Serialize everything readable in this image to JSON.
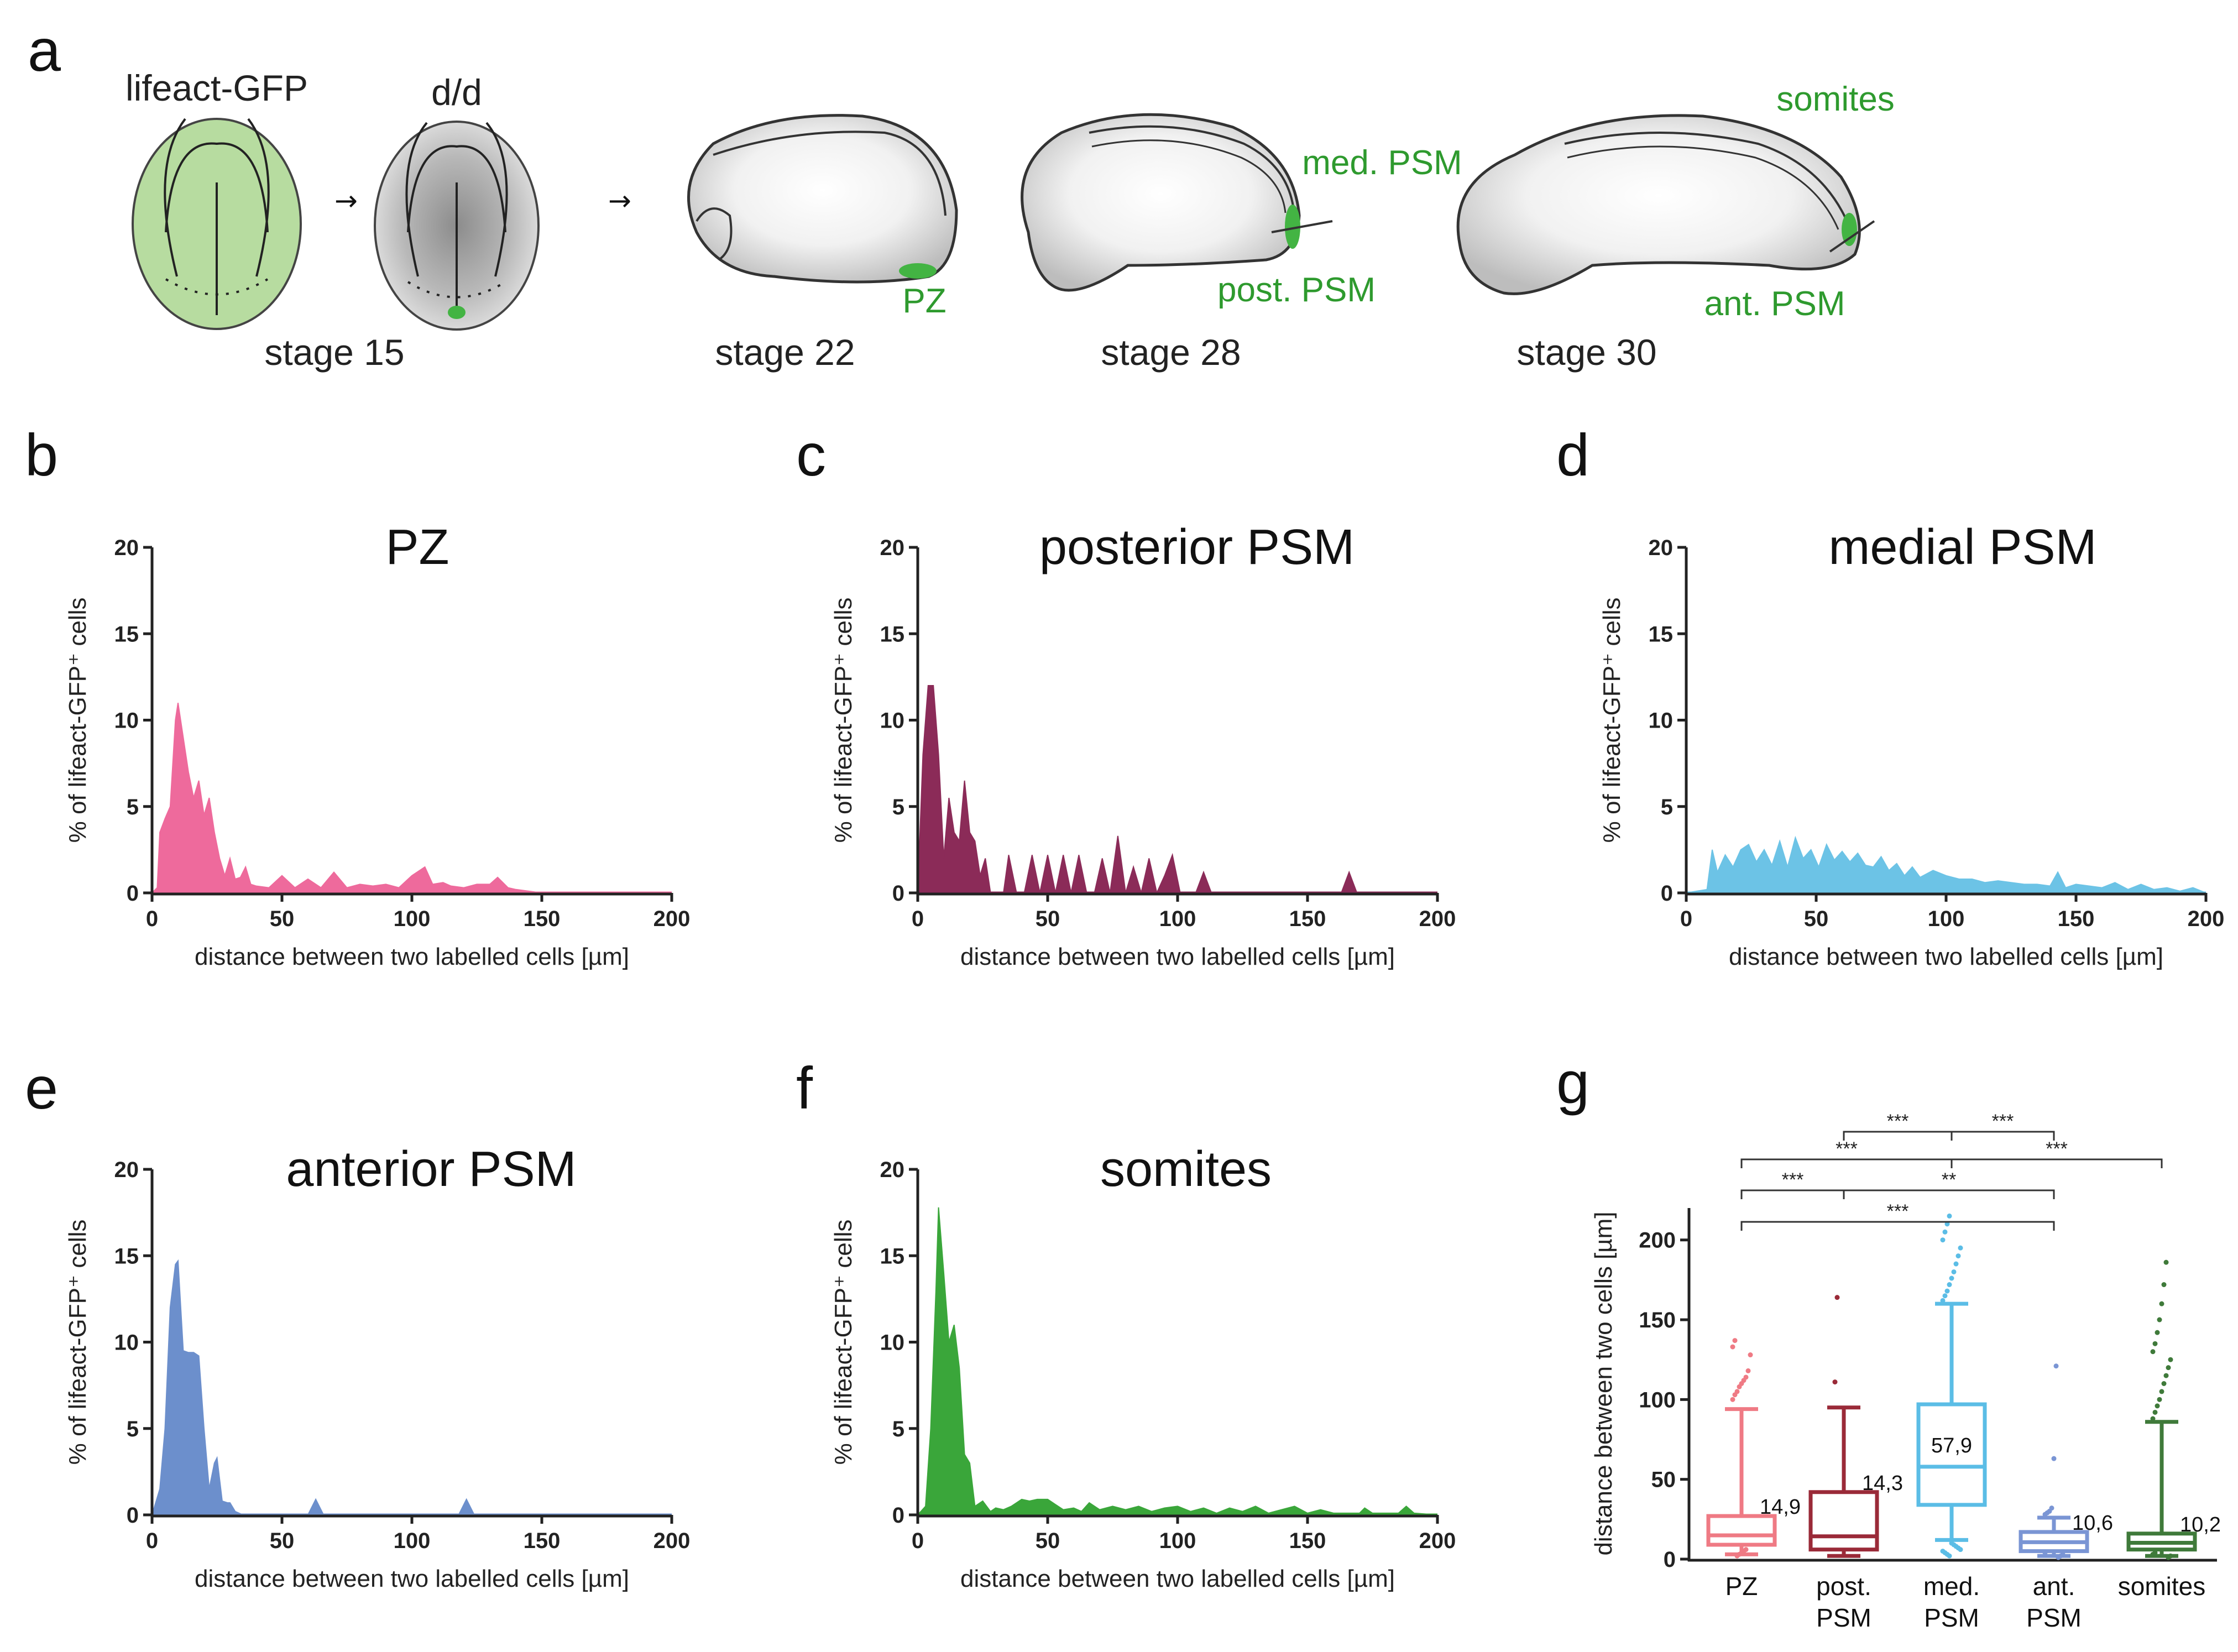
{
  "panels": {
    "a": "a",
    "b": "b",
    "c": "c",
    "d": "d",
    "e": "e",
    "f": "f",
    "g": "g"
  },
  "schematic": {
    "embryo1_label": "lifeact-GFP",
    "embryo2_label": "d/d",
    "stage15": "stage 15",
    "stage22": "stage 22",
    "stage28": "stage 28",
    "stage30": "stage 30",
    "pz": "PZ",
    "med_psm": "med. PSM",
    "post_psm": "post. PSM",
    "somites": "somites",
    "ant_psm": "ant. PSM"
  },
  "colors": {
    "pz": "#ee6a9c",
    "posterior": "#8b2b58",
    "medial": "#6cc3e6",
    "anterior": "#6c8fcc",
    "somites": "#3aa63a",
    "box_pz": "#ef7a84",
    "box_post": "#9a2a38",
    "box_med": "#5bbde6",
    "box_ant": "#7a95d4",
    "box_som": "#3f7a3a",
    "green": "#2e9a2e"
  },
  "chart_data": [
    {
      "type": "area",
      "panel": "b",
      "title": "PZ",
      "color_key": "pz",
      "xlabel": "distance between two labelled cells [µm]",
      "ylabel": "% of lifeact-GFP⁺ cells",
      "xlim": [
        0,
        200
      ],
      "ylim": [
        0,
        20
      ],
      "xticks": [
        0,
        50,
        100,
        150,
        200
      ],
      "yticks": [
        0,
        5,
        10,
        15,
        20
      ],
      "x": [
        0,
        2,
        3,
        5,
        7,
        9,
        10,
        12,
        14,
        16,
        18,
        20,
        22,
        24,
        26,
        28,
        30,
        32,
        34,
        36,
        38,
        40,
        45,
        50,
        55,
        60,
        65,
        70,
        75,
        80,
        85,
        90,
        95,
        100,
        105,
        108,
        112,
        115,
        120,
        125,
        130,
        133,
        137,
        140,
        145,
        150,
        200
      ],
      "y": [
        0,
        0.3,
        3.5,
        4.3,
        5.0,
        10.0,
        11.0,
        9.0,
        7.0,
        5.5,
        6.5,
        4.5,
        5.5,
        3.5,
        2.0,
        1.0,
        2.0,
        0.8,
        0.9,
        1.5,
        0.5,
        0.4,
        0.3,
        1.0,
        0.3,
        0.8,
        0.3,
        1.2,
        0.3,
        0.5,
        0.4,
        0.5,
        0.3,
        1.0,
        1.5,
        0.5,
        0.6,
        0.4,
        0.3,
        0.5,
        0.5,
        0.9,
        0.3,
        0.2,
        0.1,
        0,
        0
      ]
    },
    {
      "type": "area",
      "panel": "c",
      "title": "posterior PSM",
      "color_key": "posterior",
      "xlabel": "distance between two labelled cells [µm]",
      "ylabel": "% of lifeact-GFP⁺ cells",
      "xlim": [
        0,
        200
      ],
      "ylim": [
        0,
        20
      ],
      "xticks": [
        0,
        50,
        100,
        150,
        200
      ],
      "yticks": [
        0,
        5,
        10,
        15,
        20
      ],
      "x": [
        0,
        2,
        4,
        6,
        8,
        10,
        12,
        14,
        16,
        18,
        20,
        22,
        24,
        26,
        28,
        30,
        33,
        35,
        38,
        41,
        44,
        47,
        50,
        53,
        56,
        59,
        62,
        65,
        68,
        71,
        74,
        77,
        80,
        83,
        86,
        89,
        92,
        95,
        98,
        101,
        104,
        107,
        110,
        113,
        116,
        160,
        163,
        166,
        169,
        200
      ],
      "y": [
        0,
        8,
        12,
        12,
        8,
        2,
        5.5,
        3.5,
        3.0,
        6.5,
        3.5,
        3.0,
        1.0,
        2.0,
        0,
        0,
        0,
        2.2,
        0,
        0,
        2.2,
        0,
        2.2,
        0,
        2.2,
        0,
        2.2,
        0,
        0,
        2.0,
        0,
        3.3,
        0,
        1.5,
        0,
        2.0,
        0,
        1.0,
        2.2,
        0,
        0,
        0,
        1.2,
        0,
        0,
        0,
        0,
        1.2,
        0,
        0
      ]
    },
    {
      "type": "area",
      "panel": "d",
      "title": "medial PSM",
      "color_key": "medial",
      "xlabel": "distance between two labelled cells [µm]",
      "ylabel": "% of lifeact-GFP⁺ cells",
      "xlim": [
        0,
        200
      ],
      "ylim": [
        0,
        20
      ],
      "xticks": [
        0,
        50,
        100,
        150,
        200
      ],
      "yticks": [
        0,
        5,
        10,
        15,
        20
      ],
      "x": [
        0,
        4,
        8,
        10,
        12,
        15,
        18,
        21,
        24,
        27,
        30,
        33,
        36,
        39,
        42,
        45,
        48,
        51,
        54,
        57,
        60,
        63,
        66,
        69,
        72,
        75,
        78,
        81,
        84,
        87,
        90,
        95,
        100,
        105,
        110,
        115,
        120,
        125,
        130,
        135,
        140,
        143,
        146,
        150,
        155,
        160,
        165,
        170,
        175,
        180,
        185,
        190,
        195,
        200
      ],
      "y": [
        0,
        0.1,
        0.2,
        2.5,
        1.2,
        2.2,
        1.5,
        2.5,
        2.8,
        1.8,
        2.5,
        1.6,
        3.0,
        1.5,
        3.2,
        2.0,
        2.5,
        1.5,
        2.8,
        1.9,
        2.4,
        1.8,
        2.3,
        1.6,
        1.5,
        2.1,
        1.3,
        1.7,
        1.0,
        1.5,
        0.9,
        1.3,
        1.0,
        0.8,
        0.8,
        0.6,
        0.7,
        0.6,
        0.5,
        0.5,
        0.4,
        1.2,
        0.3,
        0.5,
        0.4,
        0.3,
        0.6,
        0.2,
        0.5,
        0.2,
        0.3,
        0.1,
        0.3,
        0
      ]
    },
    {
      "type": "area",
      "panel": "e",
      "title": "anterior PSM",
      "color_key": "anterior",
      "xlabel": "distance between two labelled cells [µm]",
      "ylabel": "% of lifeact-GFP⁺ cells",
      "xlim": [
        0,
        200
      ],
      "ylim": [
        0,
        20
      ],
      "xticks": [
        0,
        50,
        100,
        150,
        200
      ],
      "yticks": [
        0,
        5,
        10,
        15,
        20
      ],
      "x": [
        0,
        3,
        5,
        7,
        9,
        10,
        12,
        14,
        16,
        18,
        20,
        22,
        24,
        25,
        27,
        29,
        30,
        32,
        35,
        60,
        63,
        66,
        118,
        121,
        124,
        200
      ],
      "y": [
        0,
        1.5,
        5,
        12,
        14.5,
        14.7,
        9.5,
        9.4,
        9.4,
        9.2,
        5,
        1.5,
        3.0,
        3.3,
        0.8,
        0.7,
        0.7,
        0.2,
        0,
        0,
        0.9,
        0,
        0,
        0.9,
        0,
        0
      ]
    },
    {
      "type": "area",
      "panel": "f",
      "title": "somites",
      "color_key": "somites",
      "xlabel": "distance between two labelled cells [µm]",
      "ylabel": "% of lifeact-GFP⁺ cells",
      "xlim": [
        0,
        200
      ],
      "ylim": [
        0,
        20
      ],
      "xticks": [
        0,
        50,
        100,
        150,
        200
      ],
      "yticks": [
        0,
        5,
        10,
        15,
        20
      ],
      "x": [
        0,
        3,
        5,
        7,
        8,
        10,
        12,
        14,
        16,
        18,
        20,
        22,
        25,
        28,
        30,
        33,
        36,
        40,
        43,
        46,
        50,
        53,
        56,
        60,
        63,
        66,
        70,
        75,
        80,
        85,
        90,
        95,
        100,
        105,
        110,
        115,
        120,
        125,
        130,
        135,
        140,
        145,
        150,
        155,
        160,
        170,
        172,
        175,
        185,
        188,
        191,
        200
      ],
      "y": [
        0,
        0.5,
        5,
        13,
        17.8,
        14,
        10,
        11,
        8.5,
        3.5,
        3.0,
        0.5,
        0.8,
        0.2,
        0.4,
        0.3,
        0.5,
        0.9,
        0.8,
        0.9,
        0.9,
        0.6,
        0.3,
        0.4,
        0.2,
        0.7,
        0.3,
        0.5,
        0.3,
        0.5,
        0.2,
        0.4,
        0.5,
        0.2,
        0.4,
        0.1,
        0.4,
        0.2,
        0.5,
        0.1,
        0.3,
        0.5,
        0.1,
        0.3,
        0.1,
        0.1,
        0.4,
        0.1,
        0.1,
        0.5,
        0.1,
        0
      ]
    },
    {
      "type": "box",
      "panel": "g",
      "ylabel": "distance between two cells [µm]",
      "ylim": [
        0,
        220
      ],
      "yticks": [
        0,
        50,
        100,
        150,
        200
      ],
      "categories": [
        {
          "line1": "PZ",
          "line2": "",
          "q1": 9,
          "median": 14.9,
          "q3": 27,
          "whisker_low": 3,
          "whisker_high": 94,
          "median_label": "14,9",
          "color_key": "box_pz",
          "outliers": [
            100,
            103,
            105,
            108,
            110,
            112,
            114,
            118,
            128,
            133,
            137,
            2,
            3,
            4,
            5,
            6
          ]
        },
        {
          "line1": "post.",
          "line2": "PSM",
          "q1": 6,
          "median": 14.3,
          "q3": 42,
          "whisker_low": 2,
          "whisker_high": 95,
          "median_label": "14,3",
          "color_key": "box_post",
          "outliers": [
            111,
            164
          ]
        },
        {
          "line1": "med.",
          "line2": "PSM",
          "q1": 34,
          "median": 57.9,
          "q3": 97,
          "whisker_low": 12,
          "whisker_high": 160,
          "median_label": "57,9",
          "color_key": "box_med",
          "outliers": [
            162,
            165,
            168,
            172,
            176,
            180,
            185,
            190,
            195,
            200,
            205,
            210,
            215,
            10,
            9,
            8,
            7,
            6,
            5,
            4,
            3,
            2
          ]
        },
        {
          "line1": "ant.",
          "line2": "PSM",
          "q1": 5,
          "median": 10.6,
          "q3": 17,
          "whisker_low": 2,
          "whisker_high": 26,
          "median_label": "10,6",
          "color_key": "box_ant",
          "outliers": [
            28,
            29,
            30,
            32,
            63,
            121,
            1,
            2,
            3,
            4
          ]
        },
        {
          "line1": "somites",
          "line2": "",
          "q1": 6,
          "median": 10.2,
          "q3": 16,
          "whisker_low": 2,
          "whisker_high": 86,
          "median_label": "10,2",
          "color_key": "box_som",
          "outliers": [
            88,
            92,
            96,
            100,
            105,
            110,
            115,
            120,
            125,
            130,
            135,
            142,
            150,
            160,
            172,
            186,
            1,
            2,
            3,
            4
          ]
        }
      ],
      "significance": [
        {
          "from": 1,
          "to": 2,
          "label": "***",
          "row": 5
        },
        {
          "from": 2,
          "to": 3,
          "label": "***",
          "row": 5
        },
        {
          "from": 0,
          "to": 2,
          "label": "***",
          "row": 4
        },
        {
          "from": 2,
          "to": 4,
          "label": "***",
          "row": 4
        },
        {
          "from": 0,
          "to": 1,
          "label": "***",
          "row": 3
        },
        {
          "from": 1,
          "to": 3,
          "label": "**",
          "row": 3
        },
        {
          "from": 0,
          "to": 3,
          "label": "***",
          "row": 2
        }
      ]
    }
  ]
}
